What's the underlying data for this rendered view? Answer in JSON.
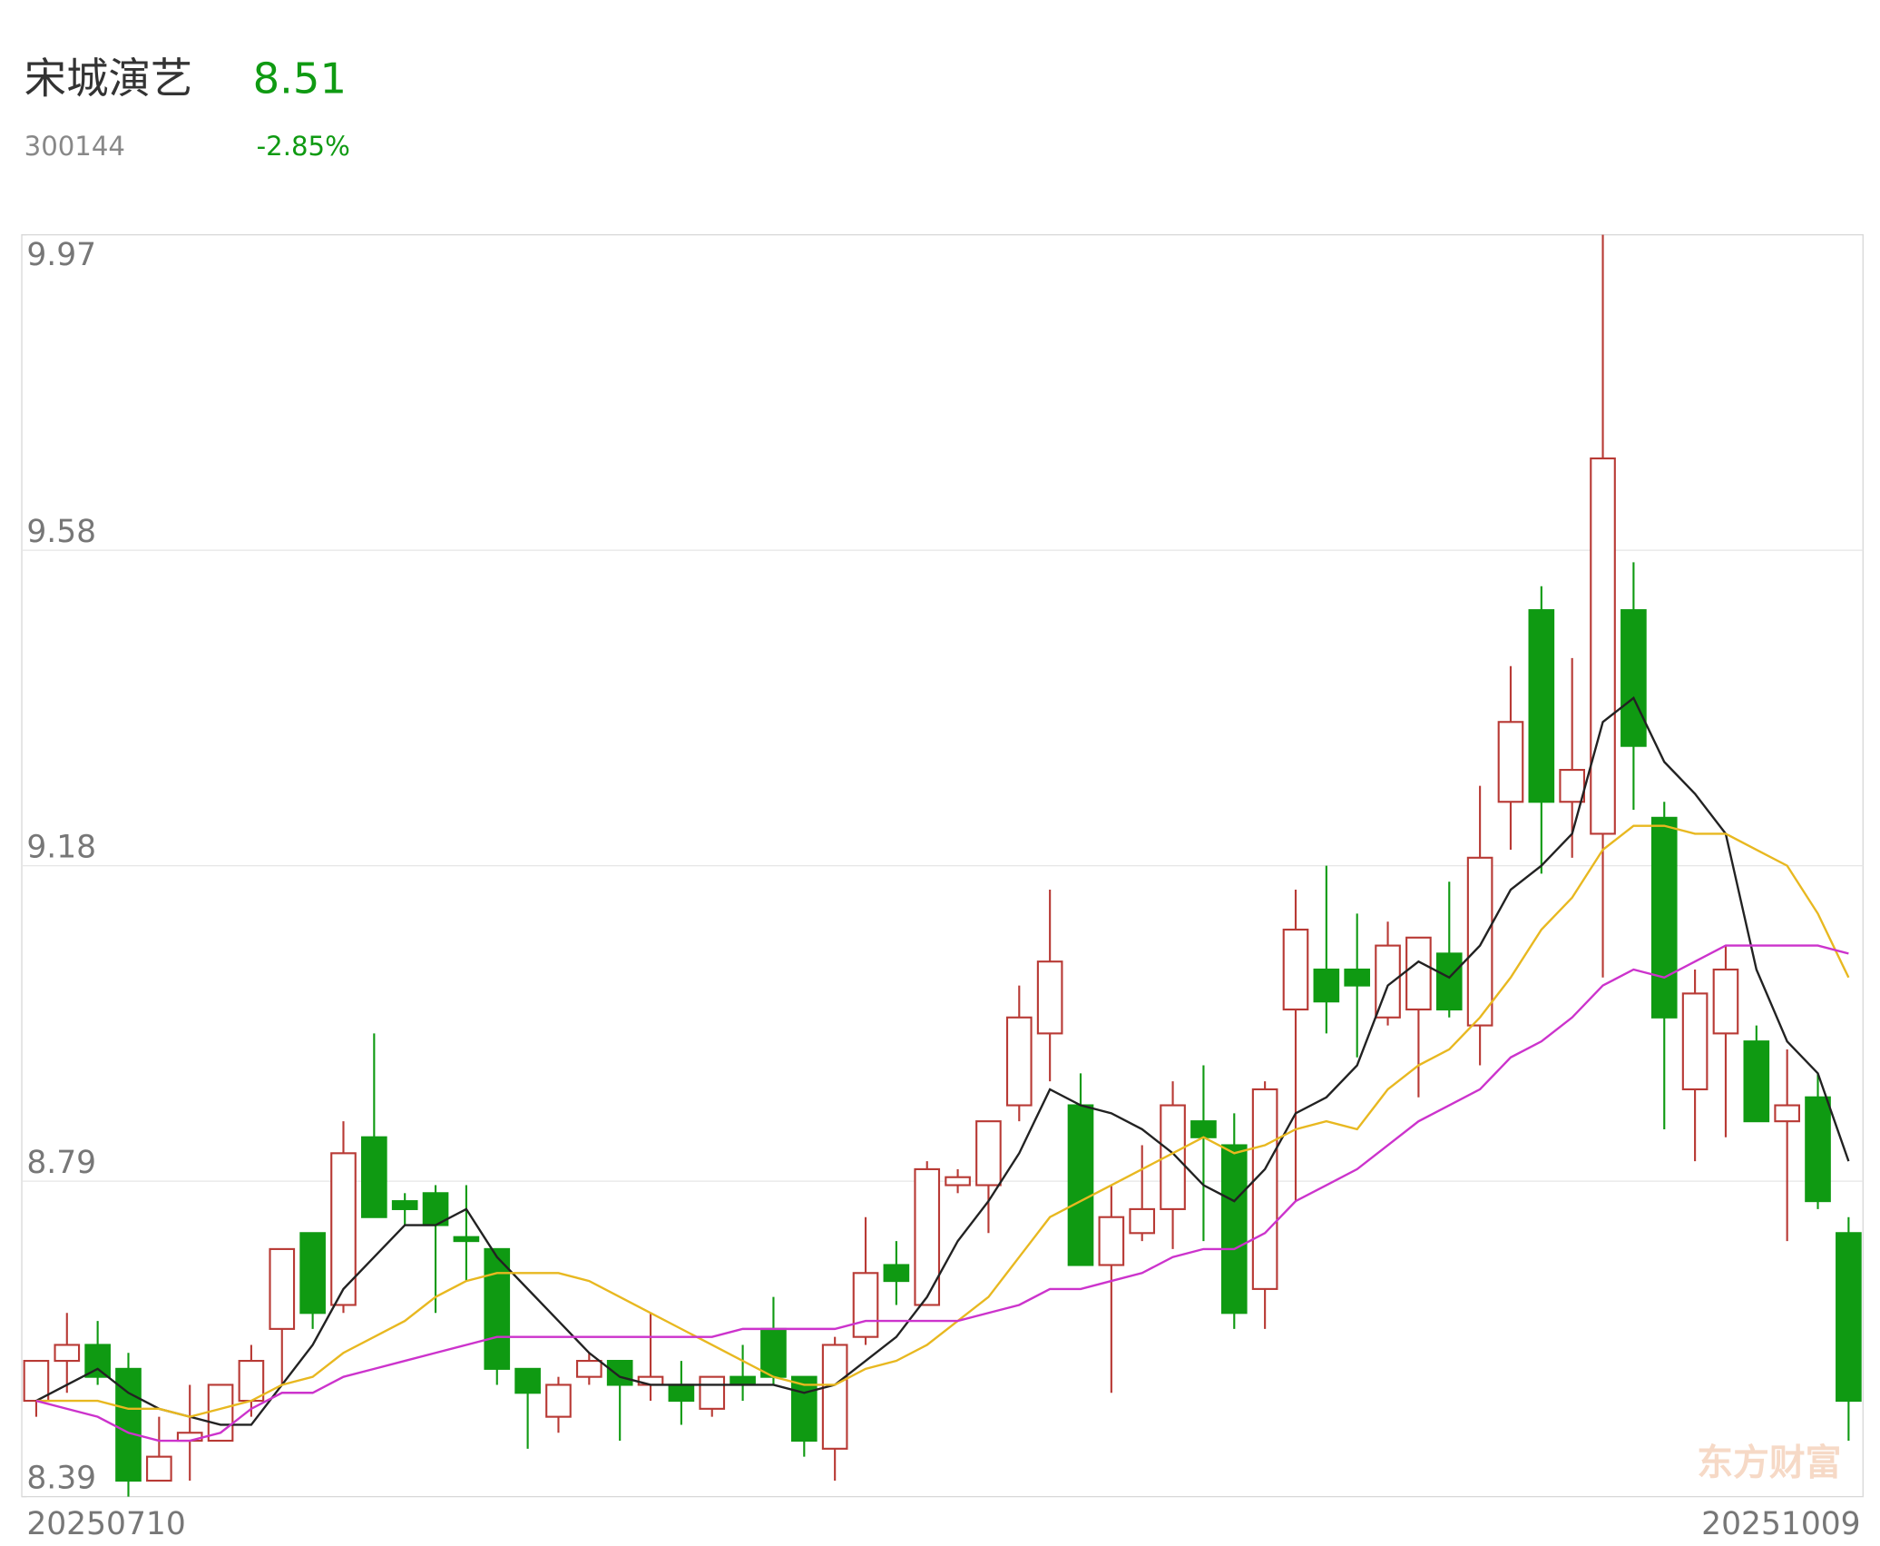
{
  "header": {
    "name": "宋城演艺",
    "price": "8.51",
    "code": "300144",
    "change": "-2.85%"
  },
  "watermark": "东方财富",
  "chart_data": {
    "type": "candlestick",
    "up_color": "#b83a35",
    "down_color": "#0f9a12",
    "grid": true,
    "ylim": [
      8.39,
      9.97
    ],
    "yticks": [
      8.39,
      {
        "value": 8.785,
        "label": "8.79"
      },
      9.18,
      {
        "value": 9.575,
        "label": "9.58"
      },
      9.97
    ],
    "categories": [
      "20250710",
      null,
      null,
      null,
      null,
      null,
      null,
      null,
      null,
      null,
      null,
      null,
      null,
      null,
      null,
      null,
      null,
      null,
      null,
      null,
      null,
      null,
      null,
      null,
      null,
      null,
      null,
      null,
      null,
      null,
      null,
      null,
      null,
      null,
      null,
      null,
      null,
      null,
      null,
      null,
      null,
      null,
      null,
      null,
      null,
      null,
      null,
      null,
      null,
      null,
      null,
      null,
      null,
      null,
      null,
      null,
      null,
      null,
      null,
      "20251009"
    ],
    "open": [
      8.51,
      8.56,
      8.58,
      8.55,
      8.41,
      8.46,
      8.46,
      8.51,
      8.6,
      8.72,
      8.63,
      8.84,
      8.76,
      8.77,
      8.715,
      8.7,
      8.55,
      8.49,
      8.54,
      8.56,
      8.53,
      8.53,
      8.5,
      8.54,
      8.6,
      8.54,
      8.45,
      8.59,
      8.68,
      8.63,
      8.78,
      8.78,
      8.88,
      8.97,
      8.88,
      8.68,
      8.72,
      8.75,
      8.86,
      8.83,
      8.65,
      9.0,
      9.05,
      9.05,
      8.99,
      9.0,
      9.07,
      8.98,
      9.26,
      9.5,
      9.26,
      9.22,
      9.5,
      9.24,
      8.9,
      8.97,
      8.96,
      8.86,
      8.89,
      8.72
    ],
    "high": [
      8.56,
      8.62,
      8.61,
      8.57,
      8.49,
      8.53,
      8.53,
      8.58,
      8.7,
      8.72,
      8.86,
      8.97,
      8.77,
      8.78,
      8.78,
      8.7,
      8.55,
      8.54,
      8.57,
      8.56,
      8.62,
      8.56,
      8.54,
      8.58,
      8.64,
      8.54,
      8.59,
      8.74,
      8.71,
      8.81,
      8.8,
      8.86,
      9.03,
      9.15,
      8.92,
      8.78,
      8.83,
      8.91,
      8.93,
      8.87,
      8.91,
      9.15,
      9.18,
      9.12,
      9.11,
      9.09,
      9.16,
      9.28,
      9.43,
      9.53,
      9.44,
      9.97,
      9.56,
      9.26,
      9.05,
      9.08,
      8.98,
      8.95,
      8.92,
      8.74
    ],
    "low": [
      8.49,
      8.52,
      8.53,
      8.39,
      8.41,
      8.41,
      8.46,
      8.49,
      8.53,
      8.6,
      8.62,
      8.74,
      8.73,
      8.62,
      8.66,
      8.53,
      8.45,
      8.47,
      8.53,
      8.46,
      8.51,
      8.48,
      8.49,
      8.51,
      8.53,
      8.44,
      8.41,
      8.58,
      8.63,
      8.63,
      8.77,
      8.72,
      8.86,
      8.91,
      8.68,
      8.52,
      8.71,
      8.7,
      8.71,
      8.6,
      8.6,
      8.76,
      8.97,
      8.94,
      8.98,
      8.89,
      8.99,
      8.93,
      9.2,
      9.17,
      9.19,
      9.04,
      9.25,
      8.85,
      8.81,
      8.84,
      8.86,
      8.71,
      8.75,
      8.46
    ],
    "close": [
      8.56,
      8.58,
      8.54,
      8.41,
      8.44,
      8.47,
      8.53,
      8.56,
      8.7,
      8.62,
      8.82,
      8.74,
      8.75,
      8.73,
      8.71,
      8.55,
      8.52,
      8.53,
      8.56,
      8.53,
      8.54,
      8.51,
      8.54,
      8.53,
      8.54,
      8.46,
      8.58,
      8.67,
      8.66,
      8.8,
      8.79,
      8.86,
      8.99,
      9.06,
      8.68,
      8.74,
      8.75,
      8.88,
      8.84,
      8.62,
      8.9,
      9.1,
      9.01,
      9.03,
      9.08,
      9.09,
      9.0,
      9.19,
      9.36,
      9.26,
      9.3,
      9.69,
      9.33,
      8.99,
      9.02,
      9.05,
      8.86,
      8.88,
      8.76,
      8.51
    ],
    "lines": [
      {
        "color": "#222222",
        "values": [
          8.51,
          8.53,
          8.55,
          8.52,
          8.5,
          8.49,
          8.48,
          8.48,
          8.53,
          8.58,
          8.65,
          8.69,
          8.73,
          8.73,
          8.75,
          8.69,
          8.65,
          8.61,
          8.57,
          8.54,
          8.53,
          8.53,
          8.53,
          8.53,
          8.53,
          8.52,
          8.53,
          8.56,
          8.59,
          8.64,
          8.71,
          8.76,
          8.82,
          8.9,
          8.88,
          8.87,
          8.85,
          8.82,
          8.78,
          8.76,
          8.8,
          8.87,
          8.89,
          8.93,
          9.03,
          9.06,
          9.04,
          9.08,
          9.15,
          9.18,
          9.22,
          9.36,
          9.39,
          9.31,
          9.27,
          9.22,
          9.05,
          8.96,
          8.92,
          8.81
        ]
      },
      {
        "color": "#e8b820",
        "values": [
          8.51,
          8.51,
          8.51,
          8.5,
          8.5,
          8.49,
          8.5,
          8.51,
          8.53,
          8.54,
          8.57,
          8.59,
          8.61,
          8.64,
          8.66,
          8.67,
          8.67,
          8.67,
          8.66,
          8.64,
          8.62,
          8.6,
          8.58,
          8.56,
          8.54,
          8.53,
          8.53,
          8.55,
          8.56,
          8.58,
          8.61,
          8.64,
          8.69,
          8.74,
          8.76,
          8.78,
          8.8,
          8.82,
          8.84,
          8.82,
          8.83,
          8.85,
          8.86,
          8.85,
          8.9,
          8.93,
          8.95,
          8.99,
          9.04,
          9.1,
          9.14,
          9.2,
          9.23,
          9.23,
          9.22,
          9.22,
          9.2,
          9.18,
          9.12,
          9.04
        ]
      },
      {
        "color": "#cc33cc",
        "values": [
          8.51,
          8.5,
          8.49,
          8.47,
          8.46,
          8.46,
          8.47,
          8.5,
          8.52,
          8.52,
          8.54,
          8.55,
          8.56,
          8.57,
          8.58,
          8.59,
          8.59,
          8.59,
          8.59,
          8.59,
          8.59,
          8.59,
          8.59,
          8.6,
          8.6,
          8.6,
          8.6,
          8.61,
          8.61,
          8.61,
          8.61,
          8.62,
          8.63,
          8.65,
          8.65,
          8.66,
          8.67,
          8.69,
          8.7,
          8.7,
          8.72,
          8.76,
          8.78,
          8.8,
          8.83,
          8.86,
          8.88,
          8.9,
          8.94,
          8.96,
          8.99,
          9.03,
          9.05,
          9.04,
          9.06,
          9.08,
          9.08,
          9.08,
          9.08,
          9.07
        ]
      }
    ]
  }
}
